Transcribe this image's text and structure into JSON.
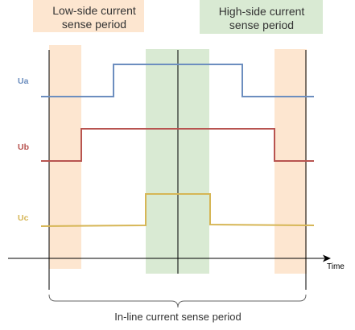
{
  "callouts": {
    "low_side": {
      "line1": "Low-side current",
      "line2": "sense period",
      "color": "#fde6d0"
    },
    "high_side": {
      "line1": "High-side current",
      "line2": "sense period",
      "color": "#d9ead3"
    }
  },
  "signals": {
    "ua": {
      "label": "Ua",
      "color": "#6c8ebf"
    },
    "ub": {
      "label": "Ub",
      "color": "#b85450"
    },
    "uc": {
      "label": "Uc",
      "color": "#d6b656"
    }
  },
  "axis": {
    "label": "Time"
  },
  "bottom": {
    "label": "In-line current sense period"
  }
}
